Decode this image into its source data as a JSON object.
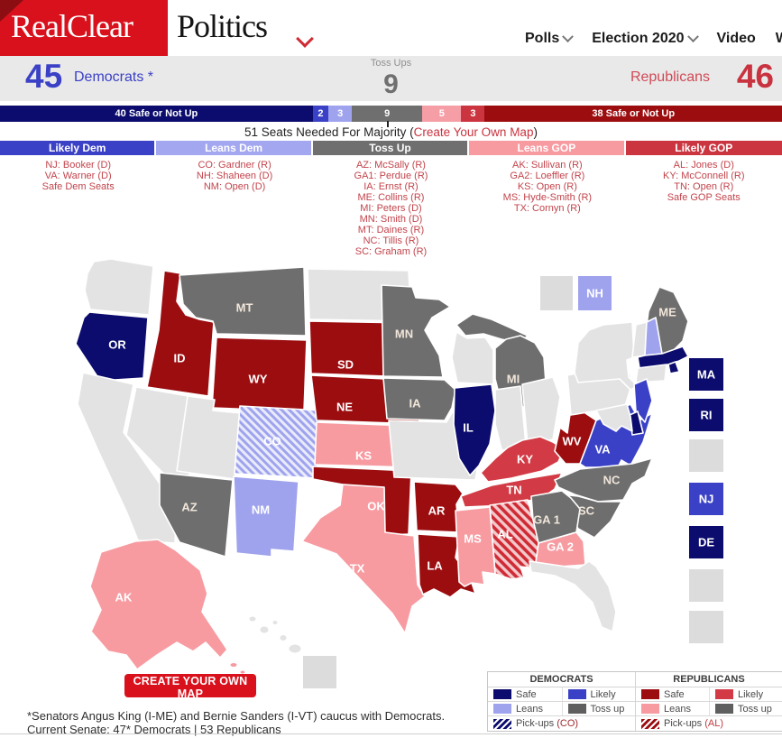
{
  "header": {
    "logo_left": "RealClear",
    "logo_right": "Politics",
    "nav": [
      {
        "label": "Polls",
        "chevron": true
      },
      {
        "label": "Election 2020",
        "chevron": true
      },
      {
        "label": "Video",
        "chevron": false
      },
      {
        "label": "Wr",
        "chevron": false
      }
    ]
  },
  "scoreboard": {
    "dem_count": "45",
    "dem_label": "Democrats *",
    "tossup_label": "Toss Ups",
    "tossup_count": "9",
    "rep_label": "Republicans",
    "rep_count": "46"
  },
  "seat_bar": {
    "segments": [
      {
        "label": "40 Safe or Not Up",
        "seats": 40,
        "color": "#0c0c6e"
      },
      {
        "label": "2",
        "seats": 2,
        "color": "#3a41c6"
      },
      {
        "label": "3",
        "seats": 3,
        "color": "#9fa3ee"
      },
      {
        "label": "9",
        "seats": 9,
        "color": "#6f6f6f"
      },
      {
        "label": "5",
        "seats": 5,
        "color": "#f59ea6"
      },
      {
        "label": "3",
        "seats": 3,
        "color": "#cb3540"
      },
      {
        "label": "38 Safe or Not Up",
        "seats": 38,
        "color": "#9c0d10"
      }
    ],
    "majority_prefix": "51 Seats Needed For Majority (",
    "majority_link": "Create Your Own Map",
    "majority_suffix": ")"
  },
  "ratings": {
    "columns": [
      {
        "header": "Likely Dem",
        "color": "#3a41c6",
        "items": [
          "NJ: Booker (D)",
          "VA: Warner (D)",
          "Safe Dem Seats"
        ]
      },
      {
        "header": "Leans Dem",
        "color": "#a3a7f0",
        "items": [
          "CO: Gardner (R)",
          "NH: Shaheen (D)",
          "NM: Open (D)"
        ]
      },
      {
        "header": "Toss Up",
        "color": "#6f6f6f",
        "items": [
          "AZ: McSally (R)",
          "GA1: Perdue (R)",
          "IA: Ernst (R)",
          "ME: Collins (R)",
          "MI: Peters (D)",
          "MN: Smith (D)",
          "MT: Daines (R)",
          "NC: Tillis (R)",
          "SC: Graham (R)"
        ]
      },
      {
        "header": "Leans GOP",
        "color": "#f79ba1",
        "items": [
          "AK: Sullivan (R)",
          "GA2: Loeffler (R)",
          "KS: Open (R)",
          "MS: Hyde-Smith (R)",
          "TX: Cornyn (R)"
        ]
      },
      {
        "header": "Likely GOP",
        "color": "#cb3540",
        "items": [
          "AL: Jones (D)",
          "KY: McConnell (R)",
          "TN: Open (R)",
          "Safe GOP Seats"
        ]
      }
    ]
  },
  "map": {
    "categories": {
      "safe_dem": "#0c0c6e",
      "likely_dem": "#3a41c6",
      "leans_dem": "#9fa3ee",
      "toss_up": "#6e6e6e",
      "leans_gop": "#f79ba1",
      "likely_gop": "#d23b45",
      "safe_gop": "#9c0d10",
      "not_up": "#e3e3e3",
      "box_gray": "#dcdcdc"
    },
    "states": [
      {
        "id": "WA",
        "category": "not_up",
        "label": ""
      },
      {
        "id": "OR",
        "category": "safe_dem",
        "label": "OR"
      },
      {
        "id": "CA",
        "category": "not_up",
        "label": ""
      },
      {
        "id": "NV",
        "category": "not_up",
        "label": ""
      },
      {
        "id": "ID",
        "category": "safe_gop",
        "label": "ID"
      },
      {
        "id": "MT",
        "category": "toss_up",
        "label": "MT"
      },
      {
        "id": "WY",
        "category": "safe_gop",
        "label": "WY"
      },
      {
        "id": "UT",
        "category": "not_up",
        "label": ""
      },
      {
        "id": "CO",
        "category": "pickup_dem",
        "label": "CO"
      },
      {
        "id": "AZ",
        "category": "toss_up",
        "label": "AZ"
      },
      {
        "id": "NM",
        "category": "leans_dem",
        "label": "NM"
      },
      {
        "id": "ND",
        "category": "not_up",
        "label": ""
      },
      {
        "id": "SD",
        "category": "safe_gop",
        "label": "SD"
      },
      {
        "id": "NE",
        "category": "safe_gop",
        "label": "NE"
      },
      {
        "id": "KS",
        "category": "leans_gop",
        "label": "KS"
      },
      {
        "id": "OK",
        "category": "safe_gop",
        "label": "OK"
      },
      {
        "id": "TX",
        "category": "leans_gop",
        "label": "TX"
      },
      {
        "id": "MN",
        "category": "toss_up",
        "label": "MN"
      },
      {
        "id": "IA",
        "category": "toss_up",
        "label": "IA"
      },
      {
        "id": "MO",
        "category": "not_up",
        "label": ""
      },
      {
        "id": "AR",
        "category": "safe_gop",
        "label": "AR"
      },
      {
        "id": "LA",
        "category": "safe_gop",
        "label": "LA"
      },
      {
        "id": "WI",
        "category": "not_up",
        "label": ""
      },
      {
        "id": "MIU",
        "category": "toss_up",
        "label": ""
      },
      {
        "id": "MI",
        "category": "toss_up",
        "label": "MI"
      },
      {
        "id": "IL",
        "category": "safe_dem",
        "label": "IL"
      },
      {
        "id": "IN",
        "category": "not_up",
        "label": ""
      },
      {
        "id": "OH",
        "category": "not_up",
        "label": ""
      },
      {
        "id": "KY",
        "category": "likely_gop",
        "label": "KY"
      },
      {
        "id": "TN",
        "category": "likely_gop",
        "label": "TN"
      },
      {
        "id": "WV",
        "category": "safe_gop",
        "label": "WV"
      },
      {
        "id": "VA",
        "category": "likely_dem",
        "label": "VA"
      },
      {
        "id": "NC",
        "category": "toss_up",
        "label": "NC"
      },
      {
        "id": "SC",
        "category": "toss_up",
        "label": "SC"
      },
      {
        "id": "GA1",
        "category": "toss_up",
        "label": "GA 1"
      },
      {
        "id": "GA2",
        "category": "leans_gop",
        "label": "GA 2"
      },
      {
        "id": "AL",
        "category": "pickup_gop",
        "label": "AL"
      },
      {
        "id": "MS",
        "category": "leans_gop",
        "label": "MS"
      },
      {
        "id": "FL",
        "category": "not_up",
        "label": ""
      },
      {
        "id": "PA",
        "category": "not_up",
        "label": ""
      },
      {
        "id": "NY",
        "category": "not_up",
        "label": ""
      },
      {
        "id": "ME",
        "category": "toss_up",
        "label": "ME"
      },
      {
        "id": "VT",
        "category": "not_up",
        "label": ""
      },
      {
        "id": "NHS",
        "category": "leans_dem",
        "label": ""
      },
      {
        "id": "MAS",
        "category": "safe_dem",
        "label": ""
      },
      {
        "id": "RIS",
        "category": "safe_dem",
        "label": ""
      },
      {
        "id": "CTS",
        "category": "not_up",
        "label": ""
      },
      {
        "id": "NJS",
        "category": "likely_dem",
        "label": ""
      },
      {
        "id": "DES",
        "category": "safe_dem",
        "label": ""
      },
      {
        "id": "MDS",
        "category": "not_up",
        "label": ""
      },
      {
        "id": "AK",
        "category": "leans_gop",
        "label": "AK"
      }
    ],
    "boxes": [
      {
        "id": "gray-top",
        "category": "box_gray",
        "label": ""
      },
      {
        "id": "nh",
        "category": "leans_dem",
        "label": "NH"
      },
      {
        "id": "ma",
        "category": "safe_dem",
        "label": "MA"
      },
      {
        "id": "ri",
        "category": "safe_dem",
        "label": "RI"
      },
      {
        "id": "gray-1",
        "category": "box_gray",
        "label": ""
      },
      {
        "id": "nj",
        "category": "likely_dem",
        "label": "NJ"
      },
      {
        "id": "de",
        "category": "safe_dem",
        "label": "DE"
      },
      {
        "id": "gray-2",
        "category": "box_gray",
        "label": ""
      },
      {
        "id": "gray-3",
        "category": "box_gray",
        "label": ""
      },
      {
        "id": "hi",
        "category": "box_gray",
        "label": ""
      }
    ]
  },
  "create_map_button": "CREATE YOUR OWN MAP",
  "legend": {
    "groups": [
      {
        "header": "DEMOCRATS",
        "cells": [
          {
            "label": "Safe",
            "color": "#0c0c6e"
          },
          {
            "label": "Likely",
            "color": "#3a41c6"
          },
          {
            "label": "Leans",
            "color": "#9fa3ee"
          },
          {
            "label": "Toss up",
            "color": "#5f5f5f"
          }
        ],
        "pickup_label": "Pick-ups",
        "pickup_state": "(CO)",
        "pickup_state_color": "#a02c31",
        "pickup_stripe": "#0c0c6e"
      },
      {
        "header": "REPUBLICANS",
        "cells": [
          {
            "label": "Safe",
            "color": "#9c0d10"
          },
          {
            "label": "Likely",
            "color": "#d23b45"
          },
          {
            "label": "Leans",
            "color": "#f79ba1"
          },
          {
            "label": "Toss up",
            "color": "#5f5f5f"
          }
        ],
        "pickup_label": "Pick-ups",
        "pickup_state": "(AL)",
        "pickup_state_color": "#c13b40",
        "pickup_stripe": "#9c0d10"
      }
    ]
  },
  "footnotes": {
    "line1": "*Senators Angus King (I-ME) and Bernie Sanders (I-VT) caucus with Democrats.",
    "line2": "Current Senate: 47* Democrats | 53 Republicans"
  }
}
